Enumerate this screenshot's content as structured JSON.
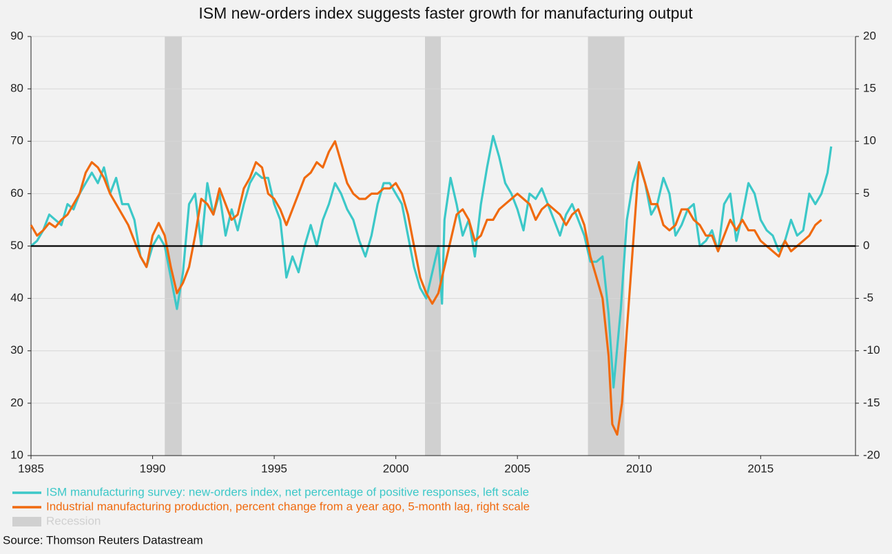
{
  "chart_data": {
    "type": "line",
    "title": "ISM new-orders index suggests faster growth for manufacturing output",
    "source": "Source: Thomson Reuters Datastream",
    "xlim": [
      1985,
      2018.9
    ],
    "xticks": [
      1985,
      1990,
      1995,
      2000,
      2005,
      2010,
      2015
    ],
    "ylim": [
      10,
      90
    ],
    "yticks": [
      10,
      20,
      30,
      40,
      50,
      60,
      70,
      80,
      90
    ],
    "y2lim": [
      -20,
      20
    ],
    "y2ticks": [
      -20,
      -15,
      -10,
      -5,
      0,
      5,
      10,
      15,
      20
    ],
    "grid": true,
    "reference_line": 50,
    "shading": {
      "name": "Recession",
      "color": "#d0d0d0",
      "spans": [
        [
          1990.5,
          1991.2
        ],
        [
          2001.2,
          2001.85
        ],
        [
          2007.9,
          2009.4
        ]
      ]
    },
    "series": [
      {
        "name": "ISM manufacturing survey: new-orders index, net percentage of positive responses, left scale",
        "color": "#3cc8c8",
        "axis": "y",
        "x": [
          1985,
          1985.25,
          1985.5,
          1985.75,
          1986,
          1986.25,
          1986.5,
          1986.75,
          1987,
          1987.25,
          1987.5,
          1987.75,
          1988,
          1988.25,
          1988.5,
          1988.75,
          1989,
          1989.25,
          1989.5,
          1989.75,
          1990,
          1990.25,
          1990.5,
          1990.75,
          1991,
          1991.25,
          1991.5,
          1991.75,
          1992,
          1992.25,
          1992.5,
          1992.75,
          1993,
          1993.25,
          1993.5,
          1993.75,
          1994,
          1994.25,
          1994.5,
          1994.75,
          1995,
          1995.25,
          1995.5,
          1995.75,
          1996,
          1996.25,
          1996.5,
          1996.75,
          1997,
          1997.25,
          1997.5,
          1997.75,
          1998,
          1998.25,
          1998.5,
          1998.75,
          1999,
          1999.25,
          1999.5,
          1999.75,
          2000,
          2000.25,
          2000.5,
          2000.75,
          2001,
          2001.25,
          2001.5,
          2001.75,
          2001.9,
          2002,
          2002.25,
          2002.5,
          2002.75,
          2003,
          2003.25,
          2003.5,
          2003.75,
          2004,
          2004.25,
          2004.5,
          2004.75,
          2005,
          2005.25,
          2005.5,
          2005.75,
          2006,
          2006.25,
          2006.5,
          2006.75,
          2007,
          2007.25,
          2007.5,
          2007.75,
          2008,
          2008.25,
          2008.5,
          2008.75,
          2008.95,
          2009.25,
          2009.5,
          2009.75,
          2010,
          2010.25,
          2010.5,
          2010.75,
          2011,
          2011.25,
          2011.5,
          2011.75,
          2012,
          2012.25,
          2012.5,
          2012.75,
          2013,
          2013.25,
          2013.5,
          2013.75,
          2014,
          2014.25,
          2014.5,
          2014.75,
          2015,
          2015.25,
          2015.5,
          2015.75,
          2016,
          2016.25,
          2016.5,
          2016.75,
          2017,
          2017.25,
          2017.5,
          2017.75,
          2017.9
        ],
        "values": [
          50,
          51,
          53,
          56,
          55,
          54,
          58,
          57,
          60,
          62,
          64,
          62,
          65,
          60,
          63,
          58,
          58,
          55,
          48,
          46,
          50,
          52,
          50,
          44,
          38,
          45,
          58,
          60,
          50,
          62,
          56,
          60,
          52,
          57,
          53,
          58,
          62,
          64,
          63,
          63,
          58,
          55,
          44,
          48,
          45,
          50,
          54,
          50,
          55,
          58,
          62,
          60,
          57,
          55,
          51,
          48,
          52,
          58,
          62,
          62,
          60,
          58,
          52,
          46,
          42,
          40,
          45,
          50,
          39,
          55,
          63,
          58,
          52,
          55,
          48,
          58,
          65,
          71,
          67,
          62,
          60,
          57,
          53,
          60,
          59,
          61,
          58,
          55,
          52,
          56,
          58,
          55,
          52,
          47,
          47,
          48,
          37,
          23,
          38,
          55,
          62,
          66,
          62,
          56,
          58,
          63,
          60,
          52,
          54,
          57,
          58,
          50,
          51,
          53,
          49,
          58,
          60,
          51,
          56,
          62,
          60,
          55,
          53,
          52,
          49,
          51,
          55,
          52,
          53,
          60,
          58,
          60,
          64,
          69
        ]
      },
      {
        "name": "Industrial manufacturing production, percent change from a year ago, 5-month lag, right scale",
        "color": "#f06a0f",
        "axis": "y2",
        "x": [
          1985,
          1985.25,
          1985.5,
          1985.75,
          1986,
          1986.25,
          1986.5,
          1986.75,
          1987,
          1987.25,
          1987.5,
          1987.75,
          1988,
          1988.25,
          1988.5,
          1988.75,
          1989,
          1989.25,
          1989.5,
          1989.75,
          1990,
          1990.25,
          1990.5,
          1990.75,
          1991,
          1991.25,
          1991.5,
          1991.75,
          1992,
          1992.25,
          1992.5,
          1992.75,
          1993,
          1993.25,
          1993.5,
          1993.75,
          1994,
          1994.25,
          1994.5,
          1994.75,
          1995,
          1995.25,
          1995.5,
          1995.75,
          1996,
          1996.25,
          1996.5,
          1996.75,
          1997,
          1997.25,
          1997.5,
          1997.75,
          1998,
          1998.25,
          1998.5,
          1998.75,
          1999,
          1999.25,
          1999.5,
          1999.75,
          2000,
          2000.25,
          2000.5,
          2000.75,
          2001,
          2001.25,
          2001.5,
          2001.75,
          2002,
          2002.25,
          2002.5,
          2002.75,
          2003,
          2003.25,
          2003.5,
          2003.75,
          2004,
          2004.25,
          2004.5,
          2004.75,
          2005,
          2005.25,
          2005.5,
          2005.75,
          2006,
          2006.25,
          2006.5,
          2006.75,
          2007,
          2007.25,
          2007.5,
          2007.75,
          2008,
          2008.25,
          2008.5,
          2008.75,
          2008.9,
          2009.1,
          2009.3,
          2009.5,
          2009.75,
          2010,
          2010.25,
          2010.5,
          2010.75,
          2011,
          2011.25,
          2011.5,
          2011.75,
          2012,
          2012.25,
          2012.5,
          2012.75,
          2013,
          2013.25,
          2013.5,
          2013.75,
          2014,
          2014.25,
          2014.5,
          2014.75,
          2015,
          2015.25,
          2015.5,
          2015.75,
          2016,
          2016.25,
          2016.5,
          2016.75,
          2017,
          2017.25,
          2017.5
        ],
        "values": [
          2,
          1,
          1.5,
          2.2,
          1.8,
          2.5,
          3,
          4,
          5,
          7,
          8,
          7.5,
          6.5,
          5,
          4,
          3,
          2,
          0.5,
          -1,
          -2,
          1,
          2.2,
          1,
          -2,
          -4.5,
          -3.5,
          -2,
          1,
          4.5,
          4,
          3,
          5.5,
          4,
          2.5,
          3,
          5.5,
          6.5,
          8,
          7.5,
          5,
          4.5,
          3.5,
          2,
          3.5,
          5,
          6.5,
          7,
          8,
          7.5,
          9,
          10,
          8,
          6,
          5,
          4.5,
          4.5,
          5,
          5,
          5.5,
          5.5,
          6,
          5,
          3,
          0,
          -3,
          -4.5,
          -5.5,
          -4.5,
          -2,
          0.5,
          3,
          3.5,
          2.5,
          0.5,
          1,
          2.5,
          2.5,
          3.5,
          4,
          4.5,
          5,
          4.5,
          4,
          2.5,
          3.5,
          4,
          3.5,
          3,
          2,
          3,
          3.5,
          2,
          -1,
          -3,
          -5,
          -10.5,
          -17,
          -18,
          -15,
          -8,
          0,
          8,
          6,
          4,
          4,
          2,
          1.5,
          2,
          3.5,
          3.5,
          2.5,
          2,
          1,
          1,
          -0.5,
          1,
          2.5,
          1.5,
          2.5,
          1.5,
          1.5,
          0.5,
          0,
          -0.5,
          -1,
          0.5,
          -0.5,
          0,
          0.5,
          1,
          2,
          2.5
        ]
      }
    ]
  }
}
